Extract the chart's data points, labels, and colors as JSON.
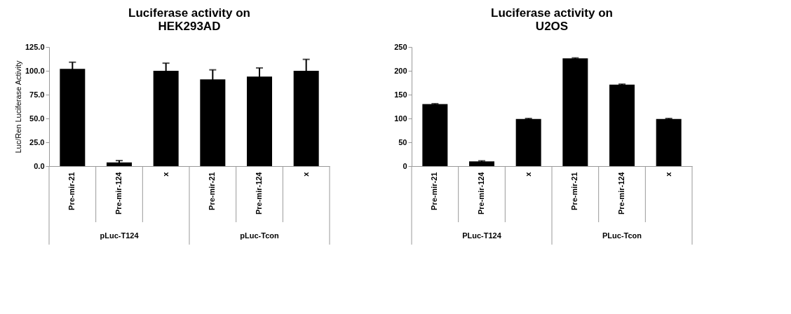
{
  "chart_data": [
    {
      "type": "bar",
      "title": "Luciferase activity on HEK293AD",
      "ylabel": "Luc/Ren Luciferase Activity",
      "categories": [
        "Pre-mir-21",
        "Pre-mir-124",
        "x",
        "Pre-mir-21",
        "Pre-mir-124",
        "x"
      ],
      "values": [
        102,
        3.8,
        100,
        91,
        94,
        100
      ],
      "errors": [
        7,
        2,
        8,
        10,
        9,
        12
      ],
      "color": "#000000",
      "ylim": [
        0,
        125
      ],
      "yticks": [
        {
          "value": 0,
          "label": "0.0"
        },
        {
          "value": 25,
          "label": "25.0"
        },
        {
          "value": 50,
          "label": "50.0"
        },
        {
          "value": 75,
          "label": "75.0"
        },
        {
          "value": 100,
          "label": "100.0"
        },
        {
          "value": 125,
          "label": "125.0"
        }
      ],
      "annotations": [
        "pLuc-T124",
        "pLuc-Tcon"
      ],
      "grid": false
    },
    {
      "type": "bar",
      "title": "Luciferase activity on U2OS",
      "categories": [
        "Pre-mir-21",
        "Pre-mir-124",
        "x",
        "Pre-mir-21",
        "Pre-mir-124",
        "x"
      ],
      "values": [
        130,
        10,
        99,
        226,
        171,
        99
      ],
      "errors": [
        1,
        1,
        1,
        1,
        1,
        1
      ],
      "color": "#000000",
      "ylim": [
        0,
        250
      ],
      "yticks": [
        0,
        50,
        100,
        150,
        200,
        250
      ],
      "annotations": [
        "PLuc-T124",
        "PLuc-Tcon"
      ],
      "grid": false
    }
  ]
}
